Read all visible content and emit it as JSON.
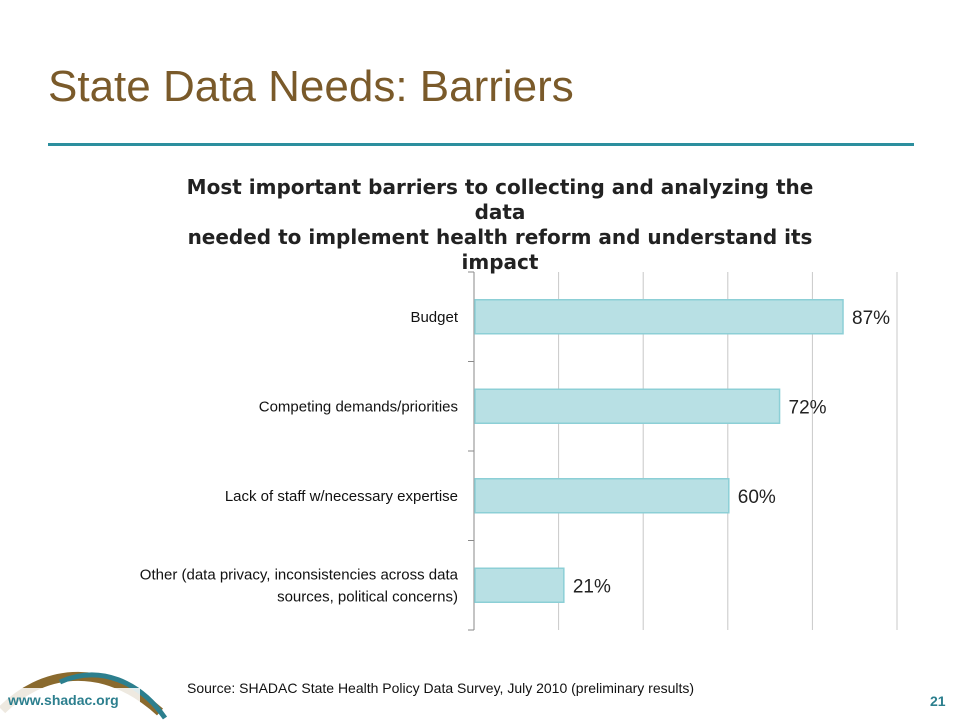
{
  "slide": {
    "title": "State Data Needs: Barriers",
    "source": "Source: SHADAC State Health Policy Data Survey, July 2010 (preliminary results)",
    "logo_url_text": "www.shadac.org",
    "page_number": "21"
  },
  "colors": {
    "title": "#7a5a2a",
    "rule": "#2c8f9e",
    "bar_fill": "#b8e0e4",
    "bar_stroke": "#8ccfd6",
    "brand": "#2c7f8e",
    "logo_gold": "#8a6a2e"
  },
  "chart_data": {
    "type": "bar",
    "orientation": "horizontal",
    "title_lines": [
      "Most important barriers to collecting and analyzing the data",
      "needed to implement health reform and understand its",
      "impact"
    ],
    "categories": [
      "Budget",
      "Competing demands/priorities",
      "Lack of staff w/necessary expertise",
      "Other (data privacy, inconsistencies across data sources, political concerns)"
    ],
    "category_label_lines": [
      [
        "Budget"
      ],
      [
        "Competing demands/priorities"
      ],
      [
        "Lack of staff w/necessary expertise"
      ],
      [
        "Other (data privacy, inconsistencies across data",
        "sources, political concerns)"
      ]
    ],
    "values": [
      87,
      72,
      60,
      21
    ],
    "data_labels": [
      "87%",
      "72%",
      "60%",
      "21%"
    ],
    "xlim": [
      0,
      100
    ],
    "gridlines": true,
    "axis_labels_shown": false
  }
}
